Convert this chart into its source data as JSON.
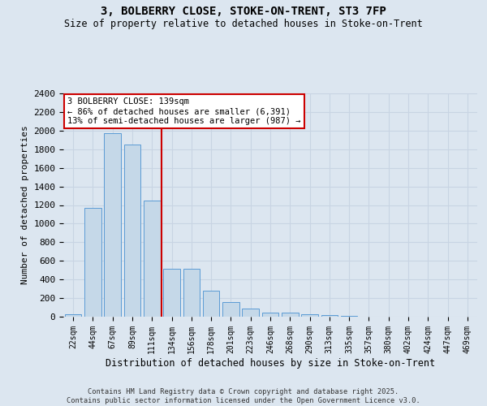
{
  "title_line1": "3, BOLBERRY CLOSE, STOKE-ON-TRENT, ST3 7FP",
  "title_line2": "Size of property relative to detached houses in Stoke-on-Trent",
  "xlabel": "Distribution of detached houses by size in Stoke-on-Trent",
  "ylabel": "Number of detached properties",
  "categories": [
    "22sqm",
    "44sqm",
    "67sqm",
    "89sqm",
    "111sqm",
    "134sqm",
    "156sqm",
    "178sqm",
    "201sqm",
    "223sqm",
    "246sqm",
    "268sqm",
    "290sqm",
    "313sqm",
    "335sqm",
    "357sqm",
    "380sqm",
    "402sqm",
    "424sqm",
    "447sqm",
    "469sqm"
  ],
  "values": [
    25,
    1170,
    1970,
    1850,
    1250,
    515,
    515,
    275,
    155,
    85,
    45,
    40,
    30,
    15,
    8,
    3,
    2,
    1,
    1,
    1,
    1
  ],
  "bar_color": "#c5d8e8",
  "bar_edge_color": "#5b9bd5",
  "vline_color": "#cc0000",
  "annotation_text": "3 BOLBERRY CLOSE: 139sqm\n← 86% of detached houses are smaller (6,391)\n13% of semi-detached houses are larger (987) →",
  "annotation_box_color": "#ffffff",
  "annotation_box_edge": "#cc0000",
  "ylim": [
    0,
    2400
  ],
  "yticks": [
    0,
    200,
    400,
    600,
    800,
    1000,
    1200,
    1400,
    1600,
    1800,
    2000,
    2200,
    2400
  ],
  "grid_color": "#c8d4e3",
  "bg_color": "#dce6f0",
  "footer_line1": "Contains HM Land Registry data © Crown copyright and database right 2025.",
  "footer_line2": "Contains public sector information licensed under the Open Government Licence v3.0."
}
